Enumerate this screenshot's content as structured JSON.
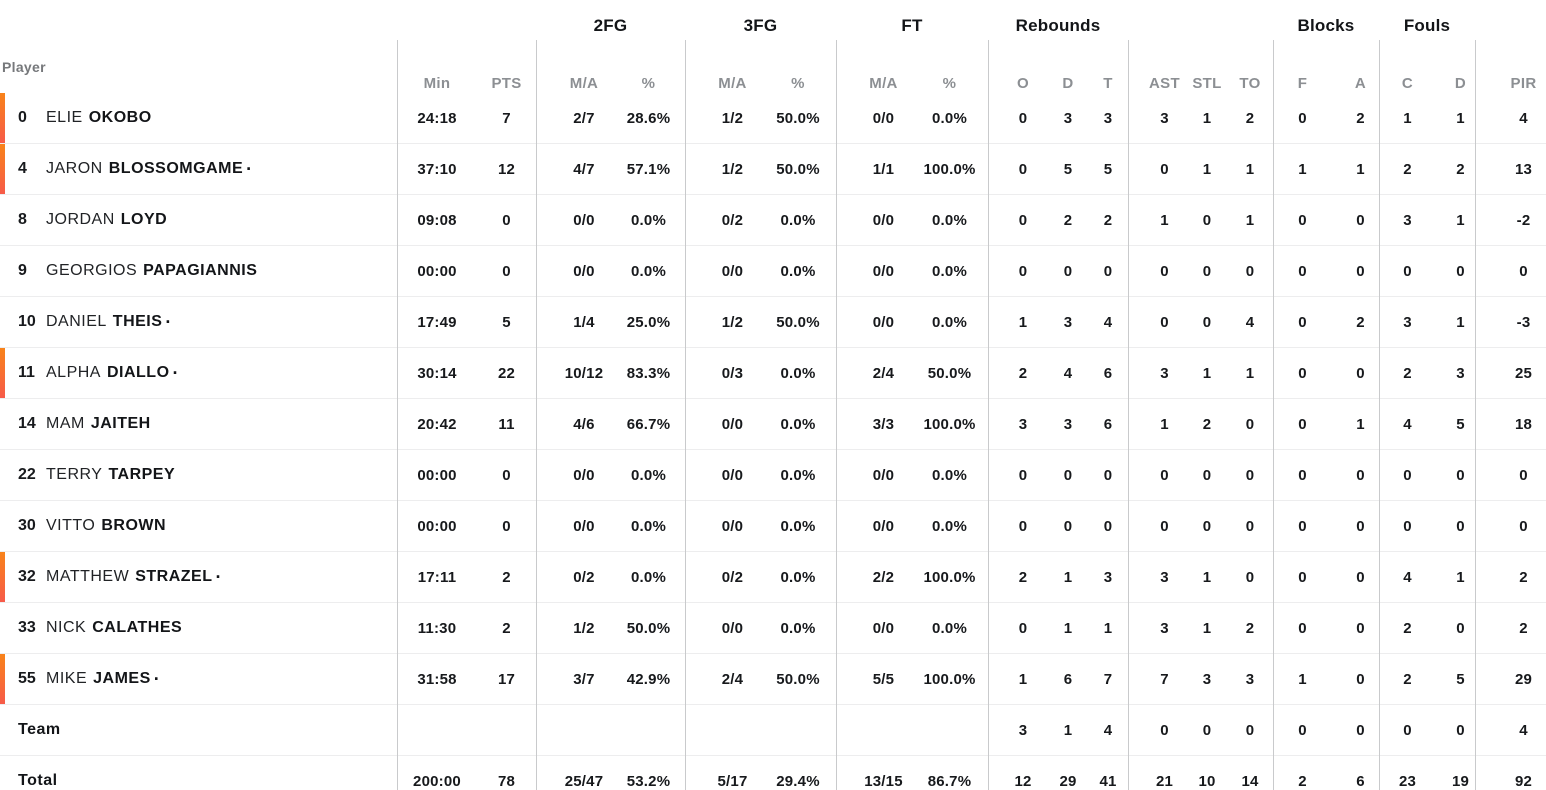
{
  "table": {
    "header": {
      "player_label": "Player",
      "groups": [
        "2FG",
        "3FG",
        "FT",
        "Rebounds",
        "Blocks",
        "Fouls"
      ],
      "columns": [
        "Min",
        "PTS",
        "M/A",
        "%",
        "M/A",
        "%",
        "M/A",
        "%",
        "O",
        "D",
        "T",
        "AST",
        "STL",
        "TO",
        "F",
        "A",
        "C",
        "D",
        "PIR"
      ]
    },
    "legend": {
      "starter_dot": "·"
    },
    "colors": {
      "accent_top": "#f8831a",
      "accent_bottom": "#f75b49"
    },
    "rows": [
      {
        "number": "0",
        "first": "ELIE",
        "last": "OKOBO",
        "on_court": true,
        "starter": false,
        "stats": [
          "24:18",
          "7",
          "2/7",
          "28.6%",
          "1/2",
          "50.0%",
          "0/0",
          "0.0%",
          "0",
          "3",
          "3",
          "3",
          "1",
          "2",
          "0",
          "2",
          "1",
          "1",
          "4"
        ]
      },
      {
        "number": "4",
        "first": "JARON",
        "last": "BLOSSOMGAME",
        "on_court": true,
        "starter": true,
        "stats": [
          "37:10",
          "12",
          "4/7",
          "57.1%",
          "1/2",
          "50.0%",
          "1/1",
          "100.0%",
          "0",
          "5",
          "5",
          "0",
          "1",
          "1",
          "1",
          "1",
          "2",
          "2",
          "13"
        ]
      },
      {
        "number": "8",
        "first": "JORDAN",
        "last": "LOYD",
        "on_court": false,
        "starter": false,
        "stats": [
          "09:08",
          "0",
          "0/0",
          "0.0%",
          "0/2",
          "0.0%",
          "0/0",
          "0.0%",
          "0",
          "2",
          "2",
          "1",
          "0",
          "1",
          "0",
          "0",
          "3",
          "1",
          "-2"
        ]
      },
      {
        "number": "9",
        "first": "GEORGIOS",
        "last": "PAPAGIANNIS",
        "on_court": false,
        "starter": false,
        "stats": [
          "00:00",
          "0",
          "0/0",
          "0.0%",
          "0/0",
          "0.0%",
          "0/0",
          "0.0%",
          "0",
          "0",
          "0",
          "0",
          "0",
          "0",
          "0",
          "0",
          "0",
          "0",
          "0"
        ]
      },
      {
        "number": "10",
        "first": "DANIEL",
        "last": "THEIS",
        "on_court": false,
        "starter": true,
        "stats": [
          "17:49",
          "5",
          "1/4",
          "25.0%",
          "1/2",
          "50.0%",
          "0/0",
          "0.0%",
          "1",
          "3",
          "4",
          "0",
          "0",
          "4",
          "0",
          "2",
          "3",
          "1",
          "-3"
        ]
      },
      {
        "number": "11",
        "first": "ALPHA",
        "last": "DIALLO",
        "on_court": true,
        "starter": true,
        "stats": [
          "30:14",
          "22",
          "10/12",
          "83.3%",
          "0/3",
          "0.0%",
          "2/4",
          "50.0%",
          "2",
          "4",
          "6",
          "3",
          "1",
          "1",
          "0",
          "0",
          "2",
          "3",
          "25"
        ]
      },
      {
        "number": "14",
        "first": "MAM",
        "last": "JAITEH",
        "on_court": false,
        "starter": false,
        "stats": [
          "20:42",
          "11",
          "4/6",
          "66.7%",
          "0/0",
          "0.0%",
          "3/3",
          "100.0%",
          "3",
          "3",
          "6",
          "1",
          "2",
          "0",
          "0",
          "1",
          "4",
          "5",
          "18"
        ]
      },
      {
        "number": "22",
        "first": "TERRY",
        "last": "TARPEY",
        "on_court": false,
        "starter": false,
        "stats": [
          "00:00",
          "0",
          "0/0",
          "0.0%",
          "0/0",
          "0.0%",
          "0/0",
          "0.0%",
          "0",
          "0",
          "0",
          "0",
          "0",
          "0",
          "0",
          "0",
          "0",
          "0",
          "0"
        ]
      },
      {
        "number": "30",
        "first": "VITTO",
        "last": "BROWN",
        "on_court": false,
        "starter": false,
        "stats": [
          "00:00",
          "0",
          "0/0",
          "0.0%",
          "0/0",
          "0.0%",
          "0/0",
          "0.0%",
          "0",
          "0",
          "0",
          "0",
          "0",
          "0",
          "0",
          "0",
          "0",
          "0",
          "0"
        ]
      },
      {
        "number": "32",
        "first": "MATTHEW",
        "last": "STRAZEL",
        "on_court": true,
        "starter": true,
        "stats": [
          "17:11",
          "2",
          "0/2",
          "0.0%",
          "0/2",
          "0.0%",
          "2/2",
          "100.0%",
          "2",
          "1",
          "3",
          "3",
          "1",
          "0",
          "0",
          "0",
          "4",
          "1",
          "2"
        ]
      },
      {
        "number": "33",
        "first": "NICK",
        "last": "CALATHES",
        "on_court": false,
        "starter": false,
        "stats": [
          "11:30",
          "2",
          "1/2",
          "50.0%",
          "0/0",
          "0.0%",
          "0/0",
          "0.0%",
          "0",
          "1",
          "1",
          "3",
          "1",
          "2",
          "0",
          "0",
          "2",
          "0",
          "2"
        ]
      },
      {
        "number": "55",
        "first": "MIKE",
        "last": "JAMES",
        "on_court": true,
        "starter": true,
        "stats": [
          "31:58",
          "17",
          "3/7",
          "42.9%",
          "2/4",
          "50.0%",
          "5/5",
          "100.0%",
          "1",
          "6",
          "7",
          "7",
          "3",
          "3",
          "1",
          "0",
          "2",
          "5",
          "29"
        ]
      },
      {
        "number": "",
        "first": "",
        "last": "Team",
        "on_court": false,
        "starter": false,
        "stats": [
          "",
          "",
          "",
          "",
          "",
          "",
          "",
          "",
          "3",
          "1",
          "4",
          "0",
          "0",
          "0",
          "0",
          "0",
          "0",
          "0",
          "4"
        ]
      },
      {
        "number": "",
        "first": "",
        "last": "Total",
        "on_court": false,
        "starter": false,
        "stats": [
          "200:00",
          "78",
          "25/47",
          "53.2%",
          "5/17",
          "29.4%",
          "13/15",
          "86.7%",
          "12",
          "29",
          "41",
          "21",
          "10",
          "14",
          "2",
          "6",
          "23",
          "19",
          "92"
        ]
      }
    ]
  }
}
